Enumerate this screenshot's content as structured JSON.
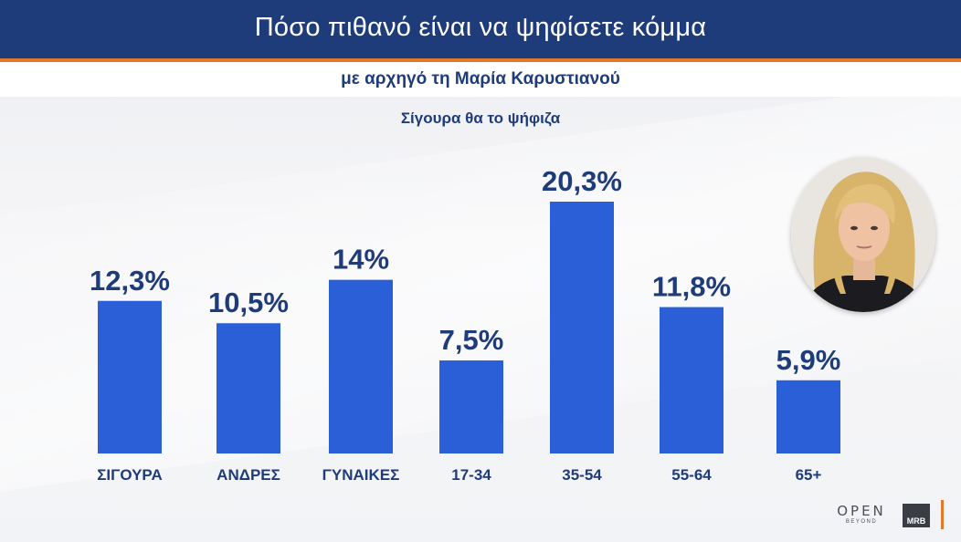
{
  "header": {
    "title": "Πόσο πιθανό είναι να ψηφίσετε κόμμα",
    "subtitle": "με αρχηγό τη Μαρία Καρυστιανού",
    "section_label": "Σίγουρα θα το ψήφιζα"
  },
  "colors": {
    "title_bar": "#1f3c7a",
    "accent_line": "#e07a2a",
    "bar": "#2a5fd8",
    "text": "#1f3c7a"
  },
  "chart_data": {
    "type": "bar",
    "title": "",
    "xlabel": "",
    "ylabel": "",
    "categories": [
      "ΣΙΓΟΥΡΑ",
      "ΑΝΔΡΕΣ",
      "ΓΥΝΑΙΚΕΣ",
      "17-34",
      "35-54",
      "55-64",
      "65+"
    ],
    "values": [
      12.3,
      10.5,
      14,
      7.5,
      20.3,
      11.8,
      5.9
    ],
    "value_labels": [
      "12,3%",
      "10,5%",
      "14%",
      "7,5%",
      "20,3%",
      "11,8%",
      "5,9%"
    ],
    "ylim": [
      0,
      20.3
    ],
    "grid": false,
    "legend": "none"
  },
  "branding": {
    "logo_open": "OPEN",
    "logo_open_sub": "BEYOND",
    "logo_mrb": "MRB",
    "portrait_icon": "person-portrait-icon"
  }
}
